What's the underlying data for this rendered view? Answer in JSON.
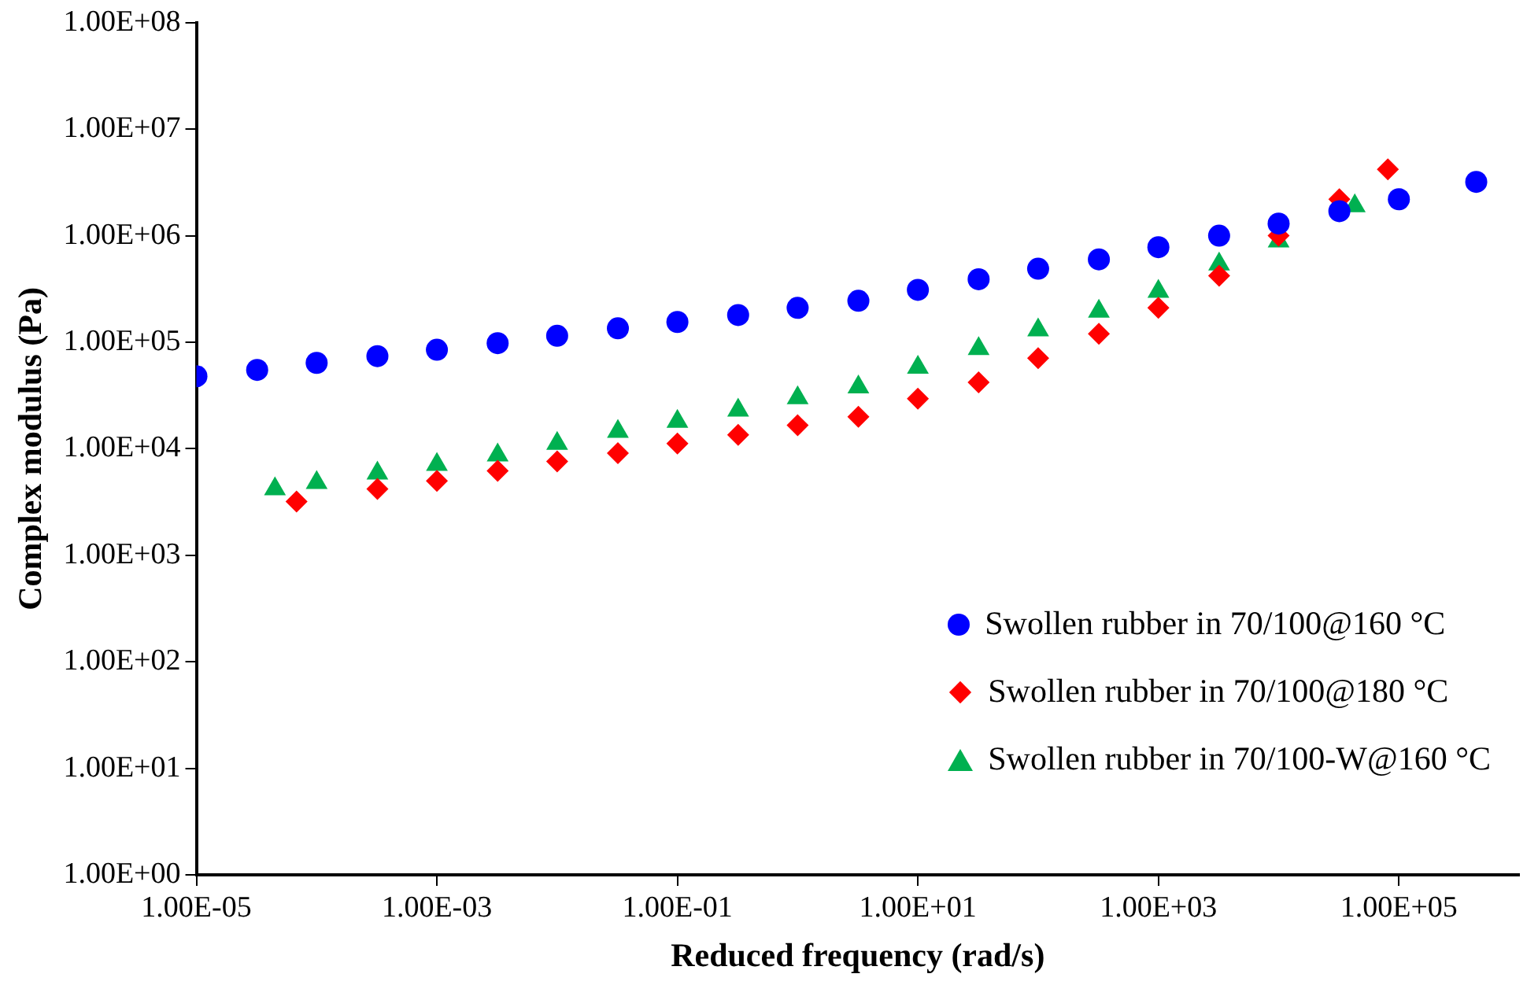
{
  "chart_data": {
    "type": "scatter",
    "xlabel": "Reduced frequency (rad/s)",
    "ylabel": "Complex modulus (Pa)",
    "log": "xy",
    "grid": false,
    "legend": "bottom right",
    "xlim": [
      1e-05,
      1000000.0
    ],
    "ylim": [
      1,
      100000000.0
    ],
    "xticks": [
      {
        "value": 1e-05,
        "label": "1.00E-05"
      },
      {
        "value": 0.001,
        "label": "1.00E-03"
      },
      {
        "value": 0.1,
        "label": "1.00E-01"
      },
      {
        "value": 10,
        "label": "1.00E+01"
      },
      {
        "value": 1000,
        "label": "1.00E+03"
      },
      {
        "value": 100000,
        "label": "1.00E+05"
      }
    ],
    "yticks": [
      {
        "value": 1,
        "label": "1.00E+00"
      },
      {
        "value": 10,
        "label": "1.00E+01"
      },
      {
        "value": 100,
        "label": "1.00E+02"
      },
      {
        "value": 1000,
        "label": "1.00E+03"
      },
      {
        "value": 10000,
        "label": "1.00E+04"
      },
      {
        "value": 100000,
        "label": "1.00E+05"
      },
      {
        "value": 1000000,
        "label": "1.00E+06"
      },
      {
        "value": 10000000,
        "label": "1.00E+07"
      },
      {
        "value": 100000000,
        "label": "1.00E+08"
      }
    ],
    "series": [
      {
        "name": "Swollen rubber in 70/100@160 °C",
        "color": "#0000ff",
        "marker": "circle",
        "x": [
          1e-05,
          3.2e-05,
          0.0001,
          0.00032,
          0.001,
          0.0032,
          0.01,
          0.032,
          0.1,
          0.32,
          1,
          3.2,
          10,
          32,
          100,
          320,
          1000,
          3200,
          10000,
          32000,
          100000,
          440000
        ],
        "values": [
          48000,
          55000,
          64000,
          74000,
          85000,
          98000,
          115000,
          135000,
          155000,
          180000,
          210000,
          245000,
          310000,
          390000,
          490000,
          600000,
          780000,
          1000000,
          1300000,
          1700000,
          2200000,
          3200000
        ]
      },
      {
        "name": "Swollen rubber in 70/100@180 °C",
        "color": "#ff0000",
        "marker": "diamond",
        "x": [
          6.8e-05,
          0.00032,
          0.001,
          0.0032,
          0.01,
          0.032,
          0.1,
          0.32,
          1,
          3.2,
          10,
          32,
          100,
          320,
          1000,
          3200,
          10000,
          32000,
          81000
        ],
        "values": [
          3200,
          4200,
          5000,
          6200,
          7600,
          9100,
          11200,
          13500,
          16600,
          20000,
          29500,
          42000,
          71000,
          120000,
          210000,
          420000,
          1000000,
          2200000,
          4200000
        ]
      },
      {
        "name": "Swollen rubber in 70/100-W@160 °C",
        "color": "#00b050",
        "marker": "triangle",
        "x": [
          4.5e-05,
          0.0001,
          0.00032,
          0.001,
          0.0032,
          0.01,
          0.032,
          0.1,
          0.32,
          1,
          3.2,
          10,
          32,
          100,
          320,
          1000,
          3200,
          10000,
          43000
        ],
        "values": [
          4200,
          4800,
          5900,
          7100,
          8700,
          11200,
          14500,
          18000,
          23000,
          30000,
          38000,
          58000,
          87000,
          130000,
          195000,
          300000,
          540000,
          890000,
          1900000
        ]
      }
    ]
  }
}
